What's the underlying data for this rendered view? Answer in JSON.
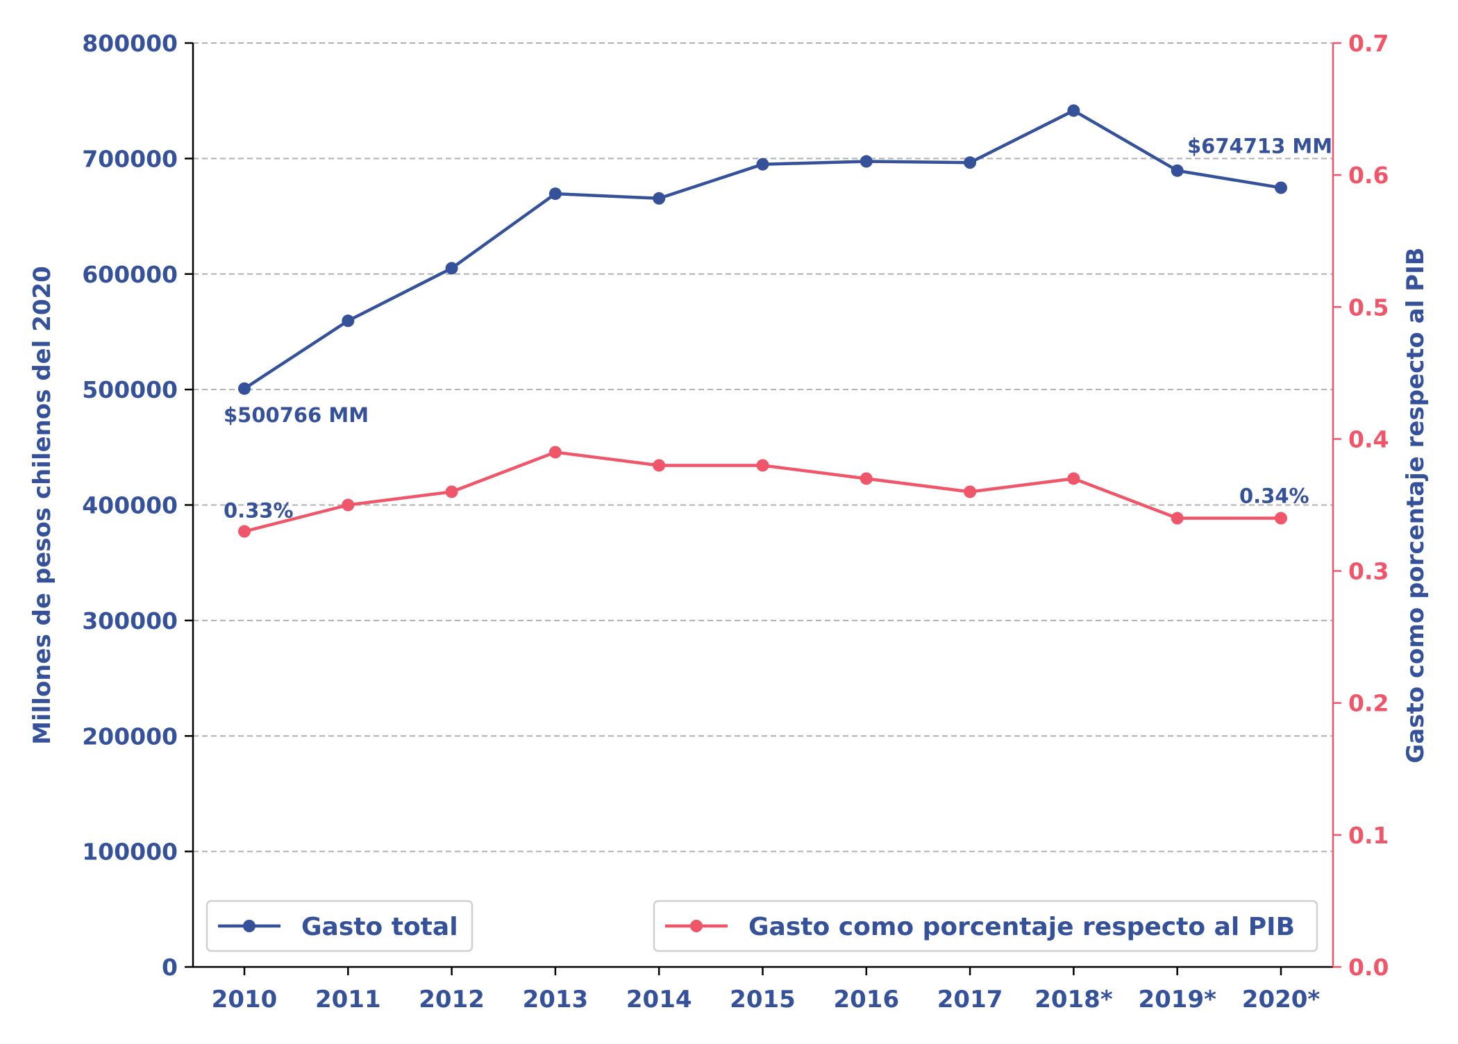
{
  "chart_data": {
    "type": "line",
    "categories": [
      "2010",
      "2011",
      "2012",
      "2013",
      "2014",
      "2015",
      "2016",
      "2017",
      "2018*",
      "2019*",
      "2020*"
    ],
    "series": [
      {
        "name": "Gasto total",
        "axis": "left",
        "color": "#34519a",
        "values": [
          500766,
          559500,
          605000,
          669500,
          665500,
          695000,
          697500,
          696500,
          741500,
          689500,
          674713
        ]
      },
      {
        "name": "Gasto como porcentaje respecto al PIB",
        "axis": "right",
        "color": "#f0566a",
        "values": [
          0.33,
          0.35,
          0.36,
          0.39,
          0.38,
          0.38,
          0.37,
          0.36,
          0.37,
          0.34,
          0.34
        ]
      }
    ],
    "left_axis": {
      "label": "Millones de pesos chilenos del 2020",
      "ylim": [
        0,
        800000
      ],
      "ticks": [
        "0",
        "100000",
        "200000",
        "300000",
        "400000",
        "500000",
        "600000",
        "700000",
        "800000"
      ],
      "color": "#34519a"
    },
    "right_axis": {
      "label": "Gasto como porcentaje respecto al PIB",
      "ylim": [
        0,
        0.7
      ],
      "ticks": [
        "0.0",
        "0.1",
        "0.2",
        "0.3",
        "0.4",
        "0.5",
        "0.6",
        "0.7"
      ],
      "label_color": "#34519a",
      "tick_color": "#f0566a"
    },
    "annotations": [
      {
        "text": "$500766 MM",
        "series": 0,
        "index": 0
      },
      {
        "text": "$674713 MM",
        "series": 0,
        "index": 10
      },
      {
        "text": "0.33%",
        "series": 1,
        "index": 0
      },
      {
        "text": "0.34%",
        "series": 1,
        "index": 10
      }
    ],
    "grid": true,
    "grid_axis": "y-left",
    "legend": [
      {
        "label": "Gasto total",
        "placement": "bottom-left"
      },
      {
        "label": "Gasto como porcentaje respecto al PIB",
        "placement": "bottom-right"
      }
    ]
  }
}
